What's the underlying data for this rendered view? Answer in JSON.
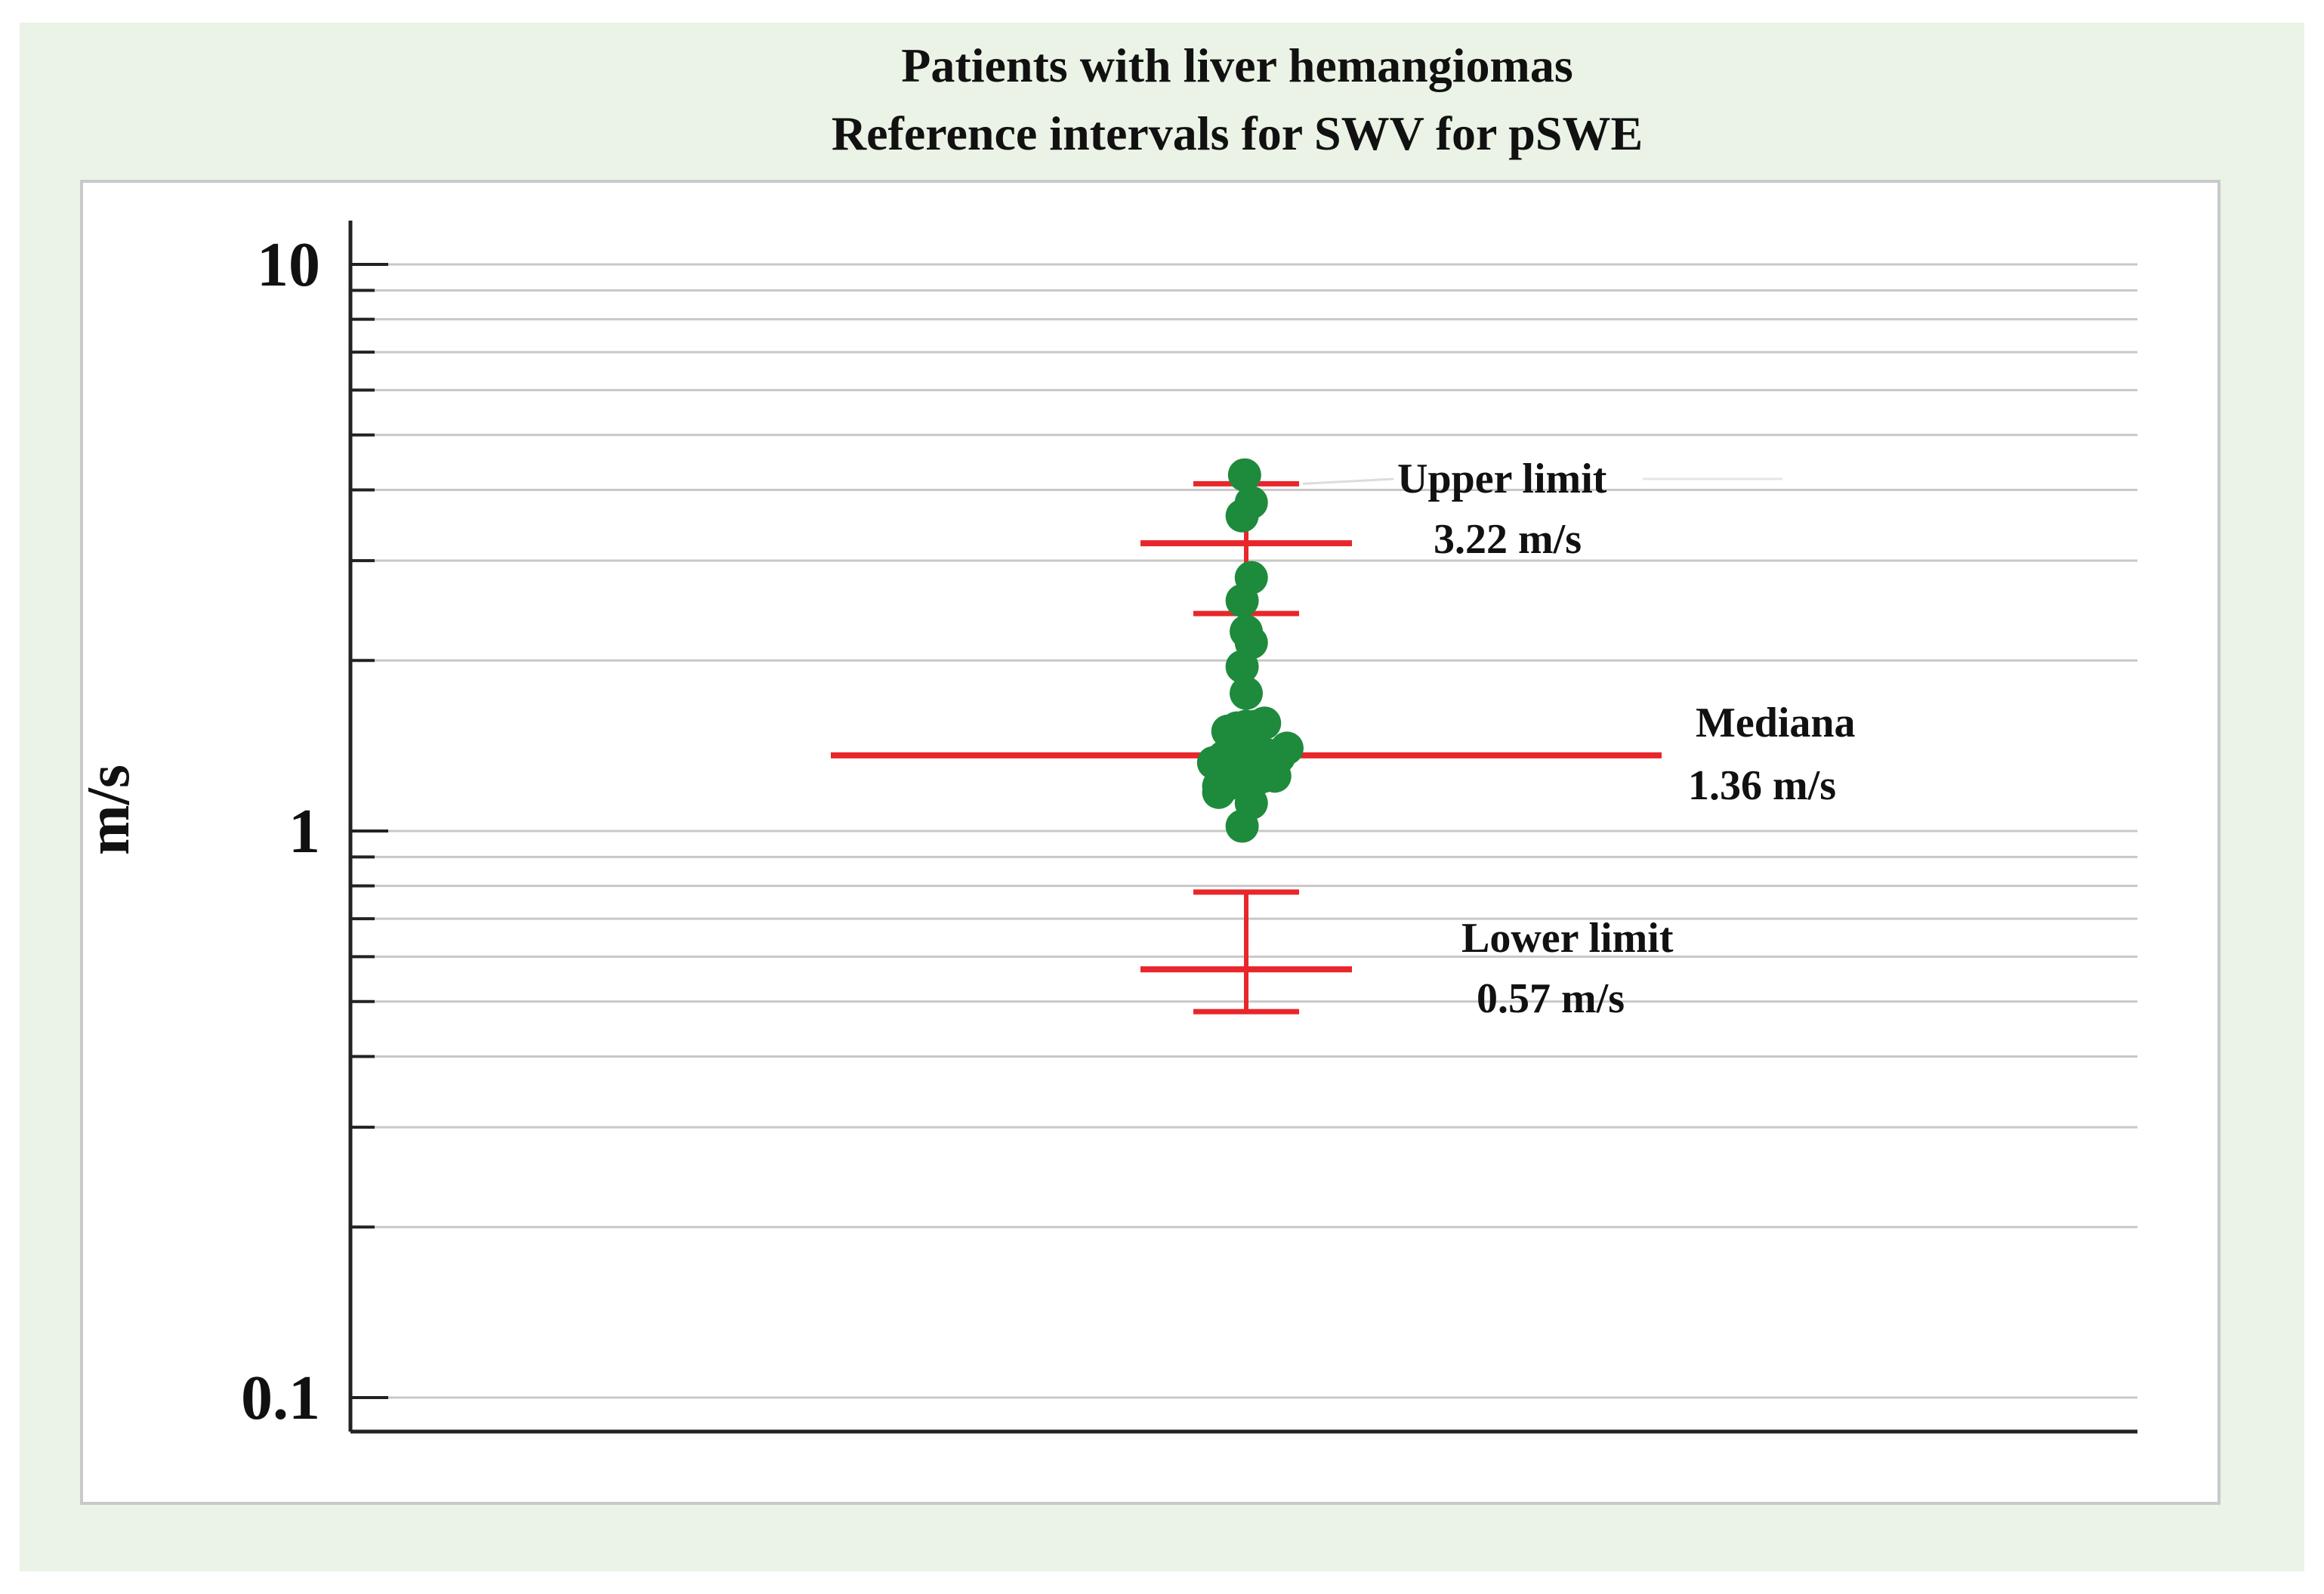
{
  "chart_data": {
    "type": "scatter",
    "title": "Patients with liver hemangiomas",
    "subtitle": "Reference intervals for SWV  for pSWE",
    "xlabel": "",
    "ylabel": "m/s",
    "yscale": "log",
    "ylim": [
      0.08,
      12
    ],
    "yticks": [
      {
        "value": 0.1,
        "label": "0.1"
      },
      {
        "value": 1,
        "label": "1"
      },
      {
        "value": 10,
        "label": "10"
      }
    ],
    "grid": true,
    "colors": {
      "points": "#1e8a3c",
      "lines": "#e8262b",
      "grid": "#c8c8c8"
    },
    "points": [
      {
        "x": -0.008,
        "y": 4.25
      },
      {
        "x": -0.02,
        "y": 3.6
      },
      {
        "x": 0.025,
        "y": 3.8
      },
      {
        "x": 0.025,
        "y": 2.8
      },
      {
        "x": -0.02,
        "y": 2.55
      },
      {
        "x": 0.0,
        "y": 2.25
      },
      {
        "x": 0.025,
        "y": 2.15
      },
      {
        "x": -0.02,
        "y": 1.95
      },
      {
        "x": 0.0,
        "y": 1.75
      },
      {
        "x": -0.09,
        "y": 1.5
      },
      {
        "x": -0.045,
        "y": 1.52
      },
      {
        "x": 0.0,
        "y": 1.53
      },
      {
        "x": 0.045,
        "y": 1.53
      },
      {
        "x": 0.09,
        "y": 1.55
      },
      {
        "x": -0.16,
        "y": 1.32
      },
      {
        "x": -0.11,
        "y": 1.35
      },
      {
        "x": -0.065,
        "y": 1.36
      },
      {
        "x": -0.02,
        "y": 1.37
      },
      {
        "x": 0.025,
        "y": 1.37
      },
      {
        "x": 0.07,
        "y": 1.36
      },
      {
        "x": 0.115,
        "y": 1.36
      },
      {
        "x": 0.16,
        "y": 1.35
      },
      {
        "x": 0.2,
        "y": 1.4
      },
      {
        "x": -0.135,
        "y": 1.2
      },
      {
        "x": -0.09,
        "y": 1.21
      },
      {
        "x": -0.045,
        "y": 1.22
      },
      {
        "x": 0.0,
        "y": 1.22
      },
      {
        "x": 0.045,
        "y": 1.23
      },
      {
        "x": 0.09,
        "y": 1.25
      },
      {
        "x": 0.14,
        "y": 1.25
      },
      {
        "x": -0.135,
        "y": 1.17
      },
      {
        "x": 0.025,
        "y": 1.12
      },
      {
        "x": -0.02,
        "y": 1.02
      }
    ],
    "median": {
      "value": 1.36,
      "ci": [
        1.28,
        1.44
      ]
    },
    "upper_limit": {
      "value": 3.22,
      "ci": [
        2.42,
        4.1
      ]
    },
    "lower_limit": {
      "value": 0.57,
      "ci": [
        0.48,
        0.78
      ]
    },
    "annotations": {
      "upper_label": "Upper limit",
      "upper_value": "3.22 m/s",
      "median_label": "Mediana",
      "median_value": "1.36 m/s",
      "lower_label": "Lower limit",
      "lower_value": "0.57 m/s"
    }
  }
}
